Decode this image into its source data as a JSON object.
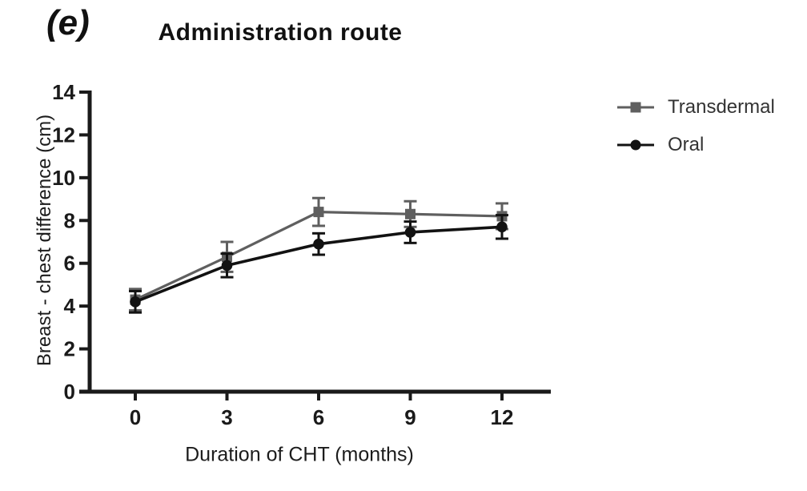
{
  "chart_data": {
    "type": "line",
    "panel_label": "(e)",
    "title": "Administration route",
    "xlabel": "Duration of CHT (months)",
    "ylabel": "Breast - chest difference (cm)",
    "x": [
      0,
      3,
      6,
      9,
      12
    ],
    "xtick_labels": [
      "0",
      "3",
      "6",
      "9",
      "12"
    ],
    "ytick_labels": [
      "0",
      "2",
      "4",
      "6",
      "8",
      "10",
      "12",
      "14"
    ],
    "yticks": [
      0,
      2,
      4,
      6,
      8,
      10,
      12,
      14
    ],
    "ylim": [
      0,
      14
    ],
    "grid": false,
    "legend_position": "right-outside",
    "axis_color": "#1a1a1a",
    "background_color": "#ffffff",
    "series": [
      {
        "name": "Transdermal",
        "marker": "square",
        "color": "#5f5f5f",
        "values": [
          4.3,
          6.3,
          8.4,
          8.3,
          8.2
        ],
        "errors": [
          0.5,
          0.7,
          0.65,
          0.6,
          0.6
        ]
      },
      {
        "name": "Oral",
        "marker": "circle",
        "color": "#121212",
        "values": [
          4.2,
          5.9,
          6.9,
          7.45,
          7.7
        ],
        "errors": [
          0.5,
          0.55,
          0.5,
          0.5,
          0.55
        ]
      }
    ]
  }
}
